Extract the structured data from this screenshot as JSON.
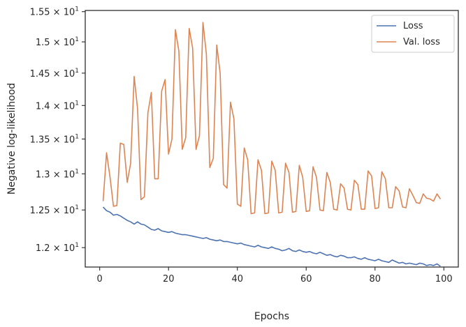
{
  "chart_data": {
    "type": "line",
    "title": "",
    "xlabel": "Epochs",
    "ylabel": "Negative log-likelihood",
    "xlim": [
      -4.2,
      104.2
    ],
    "ylim": [
      11.75,
      15.52
    ],
    "yscale": "log",
    "grid": false,
    "legend_position": "upper right",
    "x_ticks": [
      0,
      20,
      40,
      60,
      80,
      100
    ],
    "y_ticks": [
      {
        "value": 12.0,
        "mantissa": "1.2",
        "base": "10",
        "exponent": "1"
      },
      {
        "value": 12.5,
        "mantissa": "1.25",
        "base": "10",
        "exponent": "1"
      },
      {
        "value": 13.0,
        "mantissa": "1.3",
        "base": "10",
        "exponent": "1"
      },
      {
        "value": 13.5,
        "mantissa": "1.35",
        "base": "10",
        "exponent": "1"
      },
      {
        "value": 14.0,
        "mantissa": "1.4",
        "base": "10",
        "exponent": "1"
      },
      {
        "value": 14.5,
        "mantissa": "1.45",
        "base": "10",
        "exponent": "1"
      },
      {
        "value": 15.0,
        "mantissa": "1.5",
        "base": "10",
        "exponent": "1"
      },
      {
        "value": 15.5,
        "mantissa": "1.55",
        "base": "10",
        "exponent": "1"
      }
    ],
    "x": [
      1,
      2,
      3,
      4,
      5,
      6,
      7,
      8,
      9,
      10,
      11,
      12,
      13,
      14,
      15,
      16,
      17,
      18,
      19,
      20,
      21,
      22,
      23,
      24,
      25,
      26,
      27,
      28,
      29,
      30,
      31,
      32,
      33,
      34,
      35,
      36,
      37,
      38,
      39,
      40,
      41,
      42,
      43,
      44,
      45,
      46,
      47,
      48,
      49,
      50,
      51,
      52,
      53,
      54,
      55,
      56,
      57,
      58,
      59,
      60,
      61,
      62,
      63,
      64,
      65,
      66,
      67,
      68,
      69,
      70,
      71,
      72,
      73,
      74,
      75,
      76,
      77,
      78,
      79,
      80,
      81,
      82,
      83,
      84,
      85,
      86,
      87,
      88,
      89,
      90,
      91,
      92,
      93,
      94,
      95,
      96,
      97,
      98,
      99
    ],
    "series": [
      {
        "name": "Loss",
        "color": "#4c72b0",
        "values": [
          12.54,
          12.49,
          12.47,
          12.43,
          12.44,
          12.42,
          12.39,
          12.36,
          12.34,
          12.31,
          12.34,
          12.31,
          12.3,
          12.27,
          12.24,
          12.23,
          12.25,
          12.22,
          12.21,
          12.2,
          12.21,
          12.19,
          12.18,
          12.17,
          12.17,
          12.16,
          12.15,
          12.14,
          12.13,
          12.12,
          12.13,
          12.11,
          12.1,
          12.09,
          12.1,
          12.08,
          12.08,
          12.07,
          12.06,
          12.05,
          12.06,
          12.04,
          12.03,
          12.02,
          12.01,
          12.03,
          12.01,
          12.0,
          11.99,
          12.01,
          11.99,
          11.98,
          11.96,
          11.97,
          11.99,
          11.96,
          11.95,
          11.97,
          11.95,
          11.94,
          11.95,
          11.93,
          11.92,
          11.94,
          11.92,
          11.9,
          11.91,
          11.89,
          11.88,
          11.9,
          11.89,
          11.87,
          11.87,
          11.88,
          11.86,
          11.85,
          11.87,
          11.85,
          11.84,
          11.83,
          11.85,
          11.83,
          11.82,
          11.81,
          11.84,
          11.82,
          11.8,
          11.81,
          11.79,
          11.8,
          11.79,
          11.78,
          11.8,
          11.79,
          11.77,
          11.78,
          11.77,
          11.79,
          11.76
        ]
      },
      {
        "name": "Val. loss",
        "color": "#dd8452",
        "values": [
          12.62,
          13.3,
          12.95,
          12.55,
          12.56,
          13.44,
          13.42,
          12.88,
          13.15,
          14.45,
          13.95,
          12.64,
          12.68,
          13.89,
          14.2,
          12.93,
          12.93,
          14.22,
          14.4,
          13.28,
          13.5,
          15.2,
          14.85,
          13.35,
          13.52,
          15.22,
          14.9,
          13.35,
          13.55,
          15.32,
          14.8,
          13.09,
          13.22,
          14.95,
          14.5,
          12.85,
          12.8,
          14.05,
          13.8,
          12.58,
          12.55,
          13.37,
          13.2,
          12.45,
          12.46,
          13.2,
          13.05,
          12.45,
          12.46,
          13.18,
          13.05,
          12.46,
          12.47,
          13.15,
          13.02,
          12.47,
          12.48,
          13.12,
          12.95,
          12.48,
          12.49,
          13.1,
          12.95,
          12.5,
          12.49,
          13.02,
          12.88,
          12.51,
          12.5,
          12.86,
          12.8,
          12.51,
          12.5,
          12.91,
          12.85,
          12.51,
          12.51,
          13.04,
          12.97,
          12.52,
          12.53,
          13.03,
          12.93,
          12.53,
          12.53,
          12.82,
          12.76,
          12.54,
          12.53,
          12.79,
          12.7,
          12.6,
          12.59,
          12.72,
          12.66,
          12.65,
          12.62,
          12.72,
          12.65
        ]
      }
    ]
  }
}
